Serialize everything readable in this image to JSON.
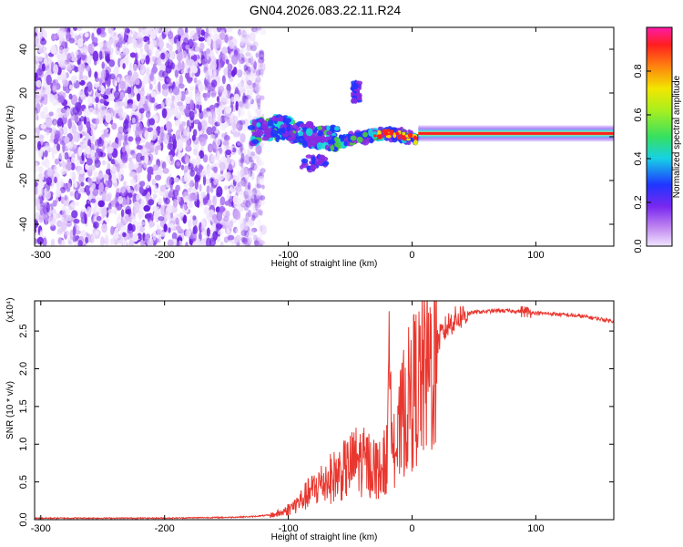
{
  "figure_title": "GN04.2026.083.22.11.R24",
  "colors": {
    "snr_line": "#e8372f",
    "spec_purple": "#8a2be2",
    "spec_light": "#d7b8f5",
    "spec_blue": "#1f35ff",
    "spec_cyan": "#16d9d9",
    "spec_green": "#4ccf3a",
    "spec_yellow": "#f2e600",
    "spec_red": "#ff1f1f"
  },
  "chart_data": [
    {
      "type": "heatmap",
      "title": "GN04.2026.083.22.11.R24",
      "xlabel": "Height of straight line (km)",
      "ylabel": "Frequency (Hz)",
      "xlim": [
        -305,
        163
      ],
      "ylim": [
        -50,
        50
      ],
      "xticks": [
        -300,
        -200,
        -100,
        0,
        100
      ],
      "yticks": [
        -40,
        -20,
        0,
        20,
        40
      ],
      "colorbar": {
        "label": "Normalized spectral amplitude",
        "range": [
          0,
          1
        ],
        "ticks": [
          "0.0",
          "0.2",
          "0.4",
          "0.6",
          "0.8"
        ],
        "tick_values": [
          0.0,
          0.2,
          0.4,
          0.6,
          0.8
        ]
      },
      "regions": [
        {
          "name": "noise",
          "x_range": [
            -305,
            -128
          ],
          "freq_range": [
            -50,
            50
          ],
          "amplitude": 0.05
        },
        {
          "name": "transition_band",
          "x_range": [
            -130,
            5
          ],
          "freq_center": 0,
          "freq_spread": 10,
          "amplitude": 0.4
        },
        {
          "name": "off_band_blob",
          "x_range": [
            -48,
            -42
          ],
          "freq_range": [
            16,
            25
          ],
          "amplitude": 0.1
        },
        {
          "name": "carrier_line",
          "x_range": [
            5,
            163
          ],
          "freq": 1.5,
          "amplitude": 0.95
        }
      ]
    },
    {
      "type": "line",
      "xlabel": "Height of straight line (km)",
      "ylabel": "SNR (10 * v/v)",
      "y_multiplier": "(x10⁴)",
      "xlim": [
        -305,
        163
      ],
      "ylim": [
        0,
        2.9
      ],
      "xticks": [
        -300,
        -200,
        -100,
        0,
        100
      ],
      "yticks": [
        "0.0",
        "0.5",
        "1.0",
        "1.5",
        "2.0",
        "2.5"
      ],
      "ytick_values": [
        0.0,
        0.5,
        1.0,
        1.5,
        2.0,
        2.5
      ],
      "series": [
        {
          "name": "SNR",
          "x": [
            -305,
            -250,
            -200,
            -150,
            -130,
            -115,
            -105,
            -95,
            -85,
            -75,
            -65,
            -55,
            -45,
            -35,
            -25,
            -20,
            -17,
            -15,
            -12,
            -8,
            -3,
            2,
            8,
            15,
            22,
            30,
            40,
            50,
            70,
            90,
            100,
            120,
            140,
            163
          ],
          "y": [
            0.02,
            0.02,
            0.02,
            0.03,
            0.04,
            0.06,
            0.1,
            0.2,
            0.35,
            0.5,
            0.6,
            0.7,
            0.85,
            0.8,
            0.7,
            0.9,
            2.85,
            1.2,
            1.0,
            1.5,
            1.7,
            1.9,
            2.0,
            2.2,
            2.4,
            2.6,
            2.7,
            2.75,
            2.77,
            2.76,
            2.74,
            2.72,
            2.69,
            2.63
          ]
        }
      ]
    }
  ]
}
